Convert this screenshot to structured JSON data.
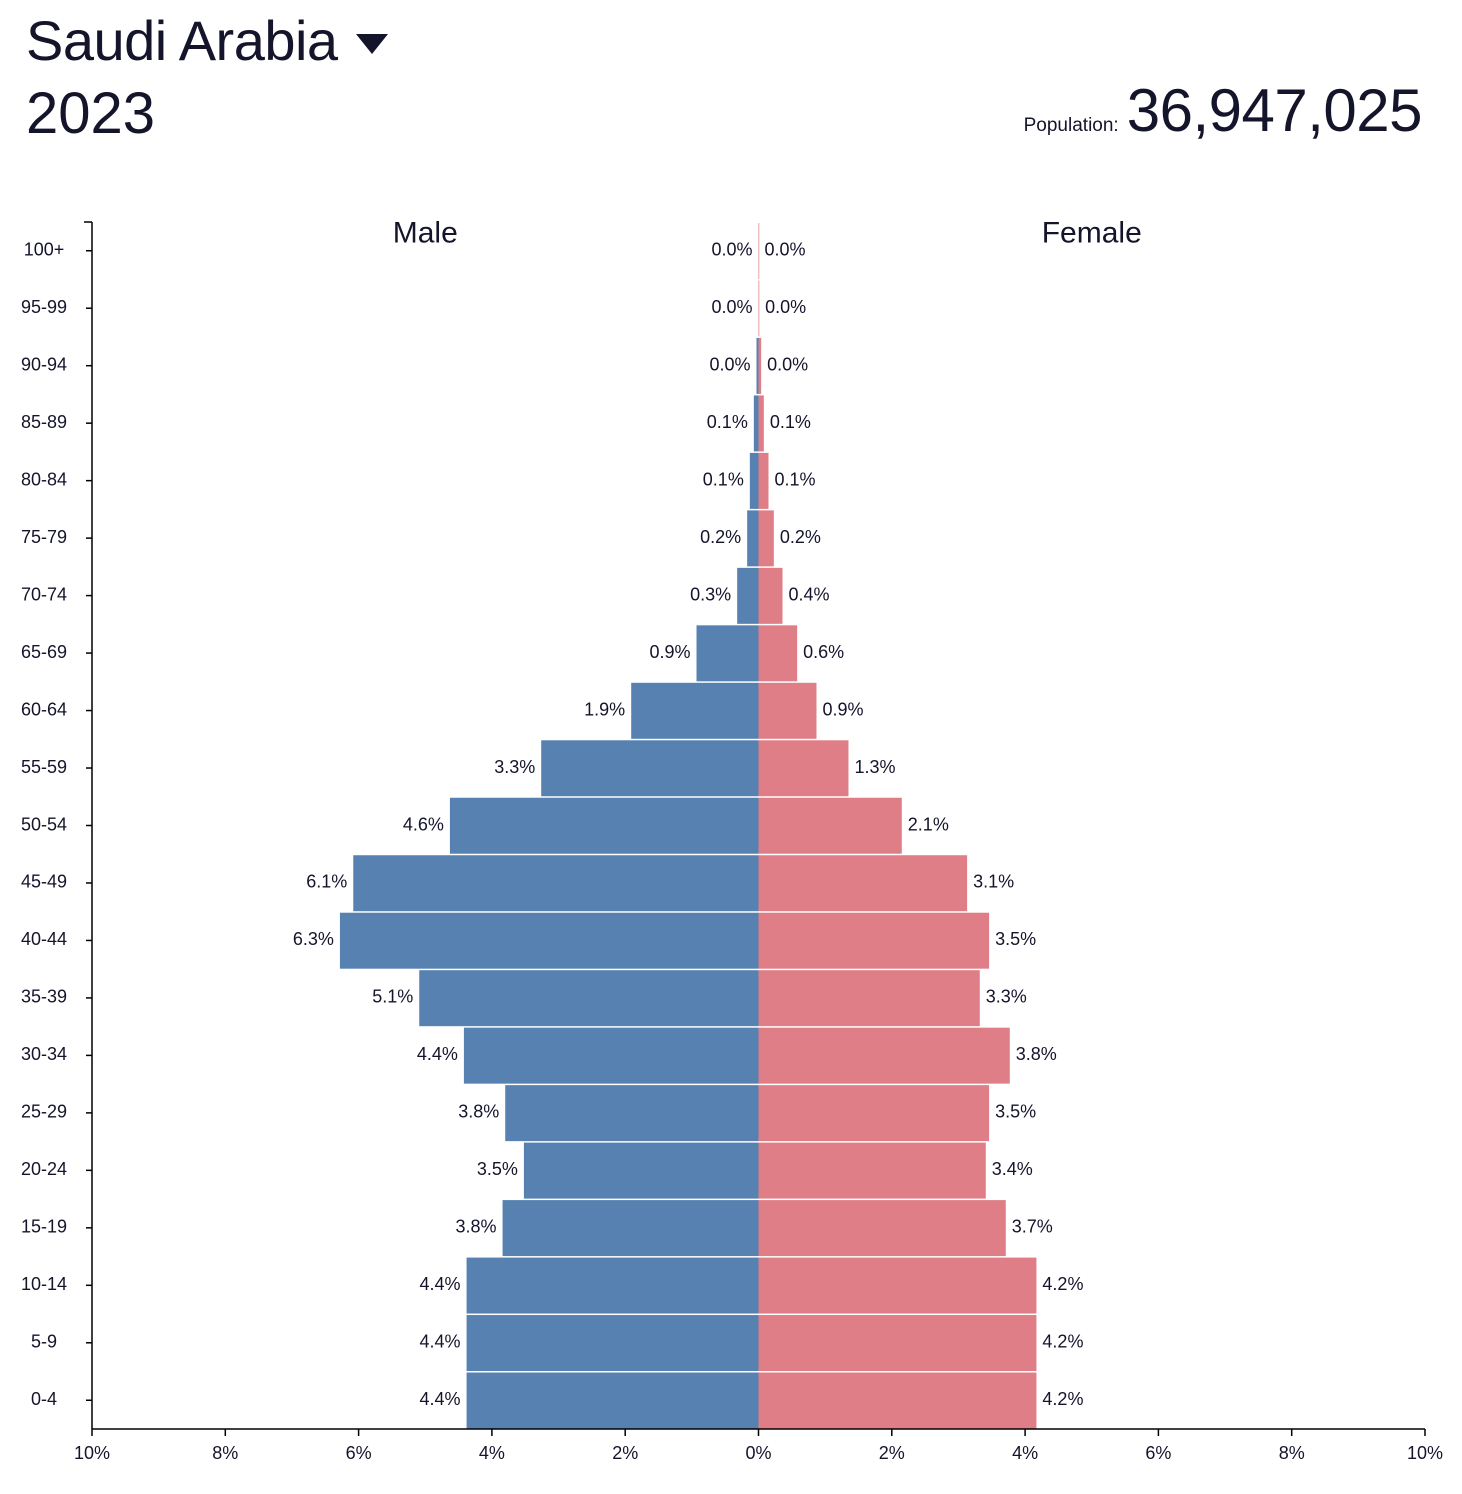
{
  "header": {
    "country": "Saudi Arabia",
    "caret_icon": "caret-down-icon",
    "year": "2023",
    "population_label": "Population:",
    "population_value": "36,947,025"
  },
  "colors": {
    "male": "#5681b1",
    "female": "#df7e87",
    "text": "#14142b"
  },
  "chart_data": {
    "type": "bar",
    "orientation": "horizontal-population-pyramid",
    "categories": [
      "100+",
      "95-99",
      "90-94",
      "85-89",
      "80-84",
      "75-79",
      "70-74",
      "65-69",
      "60-64",
      "55-59",
      "50-54",
      "45-49",
      "40-44",
      "35-39",
      "30-34",
      "25-29",
      "20-24",
      "15-19",
      "10-14",
      "5-9",
      "0-4"
    ],
    "series": [
      {
        "name": "Male",
        "values": [
          0.0,
          0.0,
          0.03,
          0.07,
          0.13,
          0.17,
          0.32,
          0.93,
          1.91,
          3.26,
          4.63,
          6.08,
          6.28,
          5.09,
          4.42,
          3.8,
          3.52,
          3.84,
          4.38,
          4.38,
          4.38
        ],
        "labels": [
          "0.0%",
          "0.0%",
          "0.0%",
          "0.1%",
          "0.1%",
          "0.2%",
          "0.3%",
          "0.9%",
          "1.9%",
          "3.3%",
          "4.6%",
          "6.1%",
          "6.3%",
          "5.1%",
          "4.4%",
          "3.8%",
          "3.5%",
          "3.8%",
          "4.4%",
          "4.4%",
          "4.4%"
        ]
      },
      {
        "name": "Female",
        "values": [
          0.0,
          0.01,
          0.04,
          0.08,
          0.15,
          0.23,
          0.36,
          0.58,
          0.87,
          1.35,
          2.15,
          3.13,
          3.46,
          3.32,
          3.77,
          3.46,
          3.41,
          3.71,
          4.17,
          4.17,
          4.17
        ],
        "labels": [
          "0.0%",
          "0.0%",
          "0.0%",
          "0.1%",
          "0.1%",
          "0.2%",
          "0.4%",
          "0.6%",
          "0.9%",
          "1.3%",
          "2.1%",
          "3.1%",
          "3.5%",
          "3.3%",
          "3.8%",
          "3.5%",
          "3.4%",
          "3.7%",
          "4.2%",
          "4.2%",
          "4.2%"
        ]
      }
    ],
    "xlim": [
      -10,
      10
    ],
    "xticks": [
      -10,
      -8,
      -6,
      -4,
      -2,
      0,
      2,
      4,
      6,
      8,
      10
    ],
    "xtick_labels": [
      "10%",
      "8%",
      "6%",
      "4%",
      "2%",
      "0%",
      "2%",
      "4%",
      "6%",
      "8%",
      "10%"
    ],
    "grid": false
  }
}
